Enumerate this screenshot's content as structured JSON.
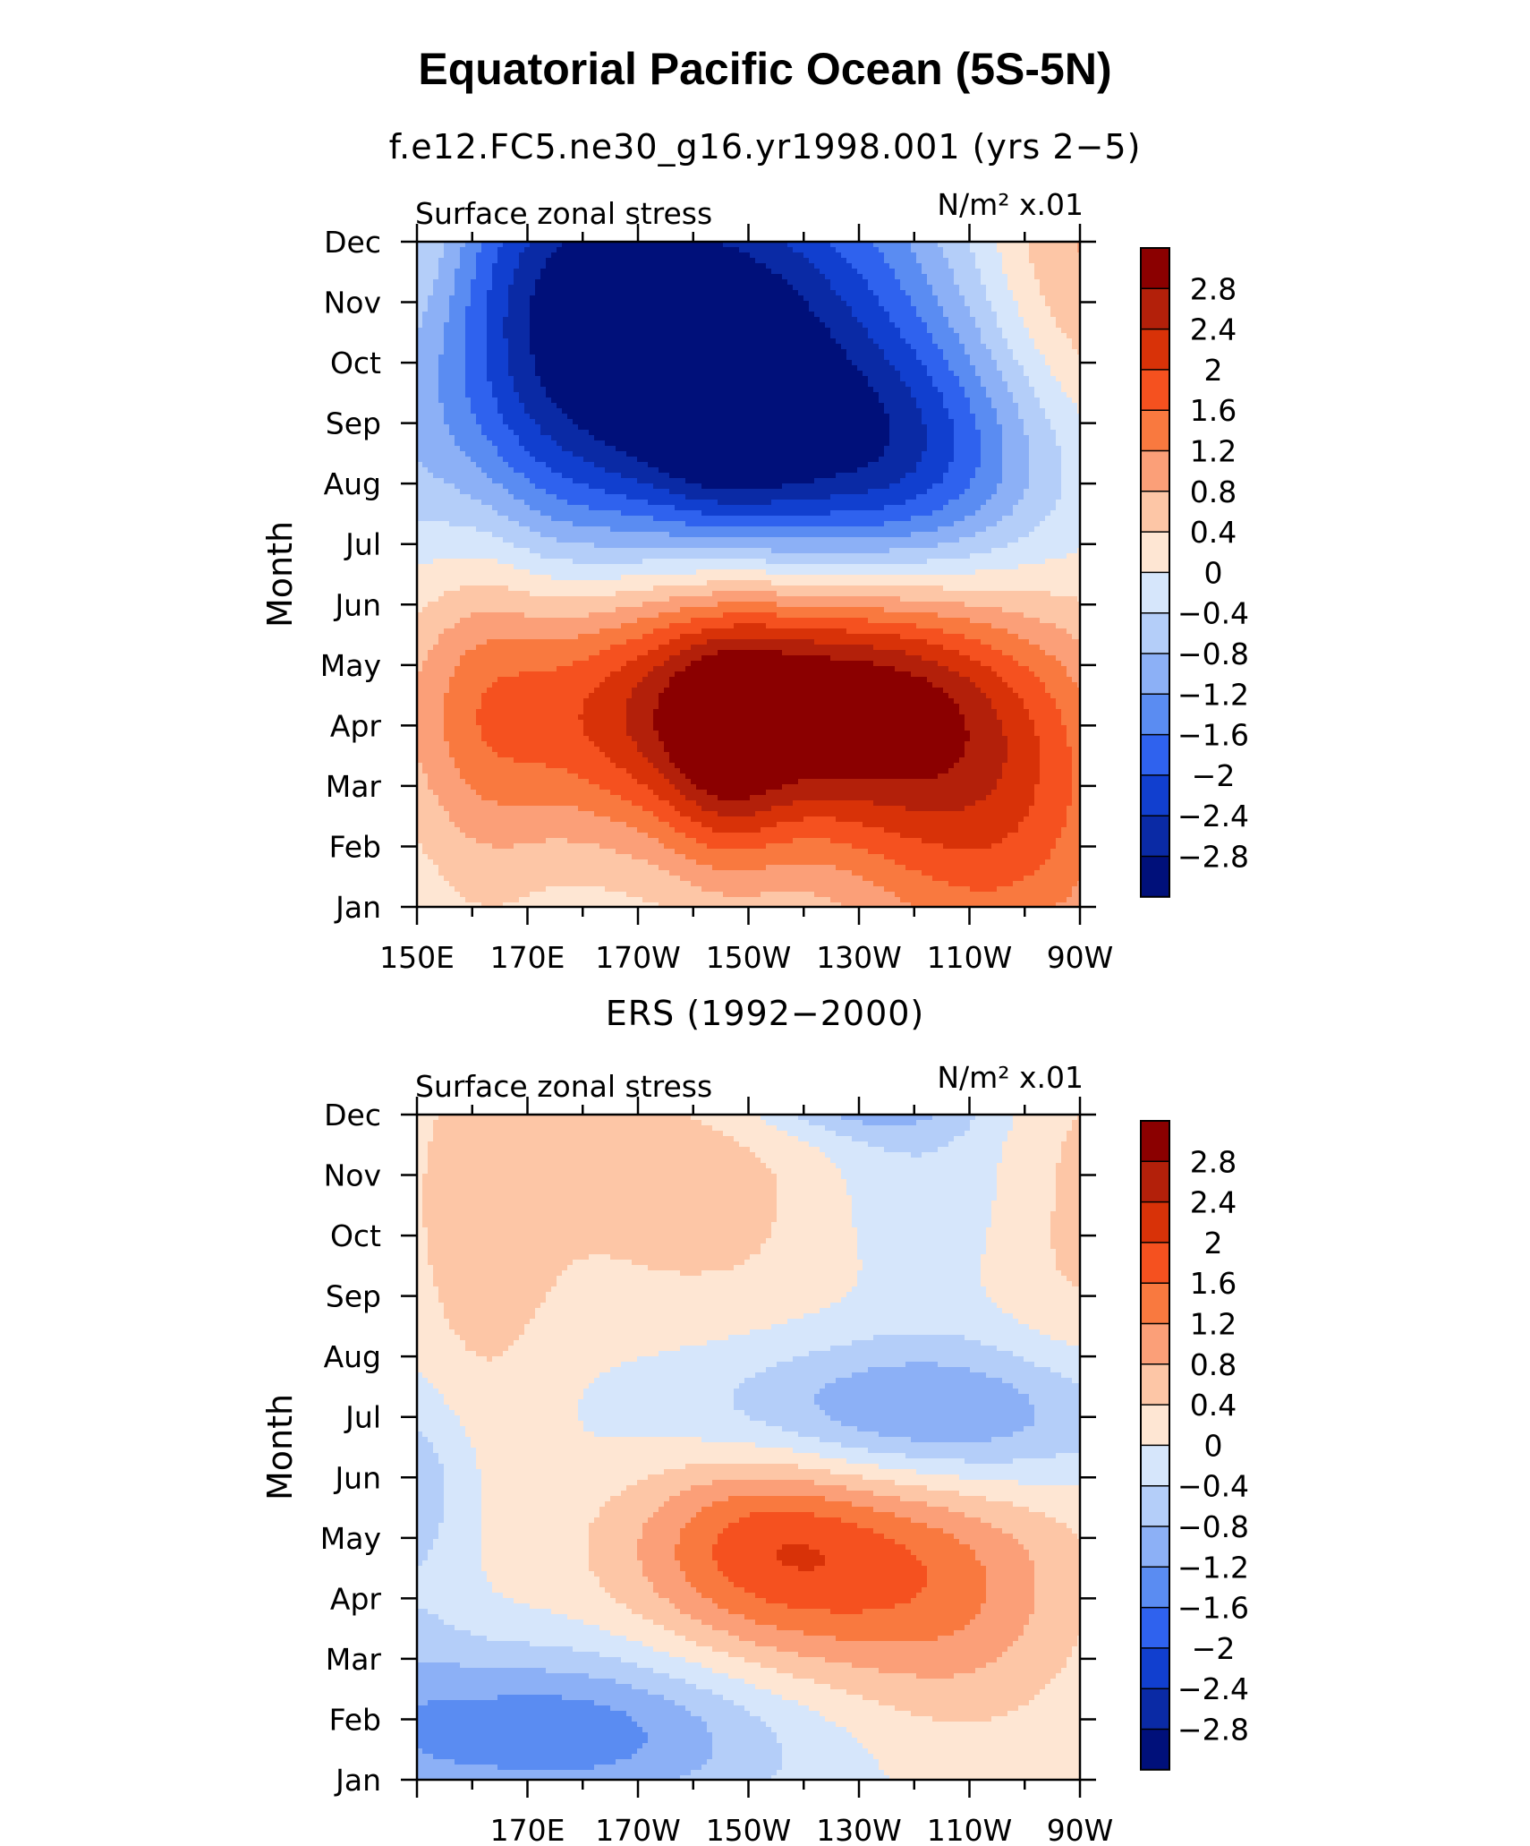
{
  "title": "Equatorial Pacific Ocean (5S-5N)",
  "chart_data": [
    {
      "type": "heatmap",
      "title": "f.e12.FC5.ne30_g16.yr1998.001 (yrs 2−5)",
      "left_label": "Surface zonal stress",
      "units": "N/m² x.01",
      "ylabel": "Month",
      "x_ticks": [
        "150E",
        "170E",
        "170W",
        "150W",
        "130W",
        "110W",
        "90W"
      ],
      "x_range": [
        150,
        270
      ],
      "y_ticks": [
        "Jan",
        "Feb",
        "Mar",
        "Apr",
        "May",
        "Jun",
        "Jul",
        "Aug",
        "Sep",
        "Oct",
        "Nov",
        "Dec"
      ],
      "color_levels": [
        "2.8",
        "2.4",
        "2",
        "1.6",
        "1.2",
        "0.8",
        "0.4",
        "0",
        "−0.4",
        "−0.8",
        "−1.2",
        "−1.6",
        "−2",
        "−2.4",
        "−2.8"
      ],
      "blobs": [
        {
          "lon": 255,
          "month": 1.0,
          "sx": 20,
          "sy": 1.8,
          "a": 1.5
        },
        {
          "lon": 206,
          "month": 3.3,
          "sx": 35,
          "sy": 1.6,
          "a": 2.7
        },
        {
          "lon": 206,
          "month": 2.4,
          "sx": 8,
          "sy": 1.5,
          "a": 0.9
        },
        {
          "lon": 235,
          "month": 3.5,
          "sx": 22,
          "sy": 1.3,
          "a": 1.1
        },
        {
          "lon": 162,
          "month": 3.5,
          "sx": 8,
          "sy": 3.0,
          "a": 0.5
        },
        {
          "lon": 200,
          "month": 8.5,
          "sx": 35,
          "sy": 2.0,
          "a": -2.5
        },
        {
          "lon": 205,
          "month": 8.0,
          "sx": 10,
          "sy": 1.2,
          "a": -0.9
        },
        {
          "lon": 236,
          "month": 7.3,
          "sx": 22,
          "sy": 1.4,
          "a": -1.5
        },
        {
          "lon": 200,
          "month": 11.0,
          "sx": 30,
          "sy": 1.5,
          "a": -1.5
        },
        {
          "lon": 175,
          "month": 10.0,
          "sx": 15,
          "sy": 3.0,
          "a": -0.8
        },
        {
          "lon": 270,
          "month": 10.5,
          "sx": 15,
          "sy": 2.5,
          "a": 1.1
        },
        {
          "lon": 150,
          "month": 10.8,
          "sx": 8,
          "sy": 1.5,
          "a": 0.6
        }
      ]
    },
    {
      "type": "heatmap",
      "title": "ERS (1992−2000)",
      "left_label": "Surface zonal stress",
      "units": "N/m² x.01",
      "ylabel": "Month",
      "x_ticks": [
        "",
        "170E",
        "170W",
        "150W",
        "130W",
        "110W",
        "90W"
      ],
      "x_range": [
        150,
        270
      ],
      "y_ticks": [
        "Jan",
        "Feb",
        "Mar",
        "Apr",
        "May",
        "Jun",
        "Jul",
        "Aug",
        "Sep",
        "Oct",
        "Nov",
        "Dec"
      ],
      "color_levels": [
        "2.8",
        "2.4",
        "2",
        "1.6",
        "1.2",
        "0.8",
        "0.4",
        "0",
        "−0.4",
        "−0.8",
        "−1.2",
        "−1.6",
        "−2",
        "−2.4",
        "−2.8"
      ],
      "blobs": [
        {
          "lon": 175,
          "month": 0.8,
          "sx": 30,
          "sy": 1.0,
          "a": -1.5
        },
        {
          "lon": 150,
          "month": 3.5,
          "sx": 8,
          "sy": 3.0,
          "a": -0.3
        },
        {
          "lon": 223,
          "month": 3.6,
          "sx": 24,
          "sy": 1.4,
          "a": 1.7
        },
        {
          "lon": 210,
          "month": 4.2,
          "sx": 14,
          "sy": 1.0,
          "a": 0.5
        },
        {
          "lon": 250,
          "month": 2.5,
          "sx": 15,
          "sy": 1.6,
          "a": 0.5
        },
        {
          "lon": 240,
          "month": 6.0,
          "sx": 30,
          "sy": 0.9,
          "a": -1.5
        },
        {
          "lon": 205,
          "month": 10.0,
          "sx": 30,
          "sy": 2.0,
          "a": 0.6
        },
        {
          "lon": 160,
          "month": 8.5,
          "sx": 10,
          "sy": 3.0,
          "a": 0.5
        },
        {
          "lon": 230,
          "month": 11.6,
          "sx": 15,
          "sy": 0.6,
          "a": -1.6
        },
        {
          "lon": 240,
          "month": 10.0,
          "sx": 15,
          "sy": 1.5,
          "a": -0.6
        },
        {
          "lon": 270,
          "month": 9.5,
          "sx": 12,
          "sy": 3.0,
          "a": 0.5
        },
        {
          "lon": 150,
          "month": 5.0,
          "sx": 8,
          "sy": 1.0,
          "a": -0.5
        }
      ]
    }
  ],
  "colors": {
    "levels_top_to_bottom": [
      "#8b0000",
      "#b3200a",
      "#d83208",
      "#f5511f",
      "#f9793f",
      "#fb9f78",
      "#fdc6a6",
      "#fee6d3",
      "#d6e6fb",
      "#b4cef9",
      "#8cb0f6",
      "#5a8cf2",
      "#2f62ee",
      "#113fcf",
      "#0a2aa5",
      "#00107a"
    ]
  }
}
